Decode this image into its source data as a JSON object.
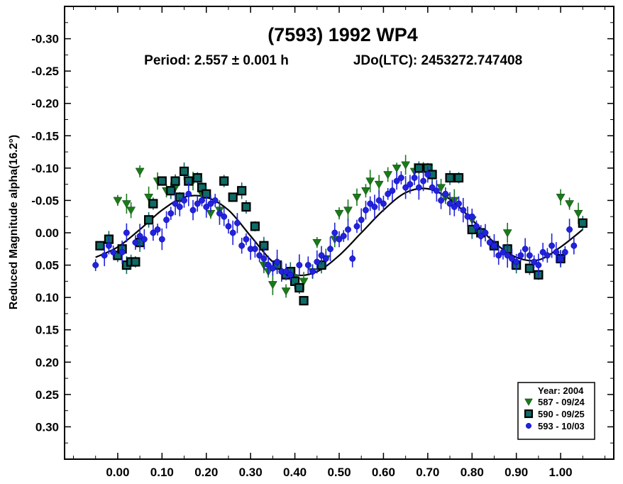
{
  "chart_data": {
    "type": "scatter",
    "title": "(7593) 1992 WP4",
    "subtitle_period": "Period: 2.557 ± 0.001 h",
    "subtitle_epoch": "JDo(LTC): 2453272.747408",
    "xlabel": "",
    "ylabel": "Reduced Magnitude alpha(16.2°)",
    "xlim": [
      -0.12,
      1.12
    ],
    "ylim": [
      -0.35,
      0.35
    ],
    "y_inverted": true,
    "x_ticks": [
      0.0,
      0.1,
      0.2,
      0.3,
      0.4,
      0.5,
      0.6,
      0.7,
      0.8,
      0.9,
      1.0
    ],
    "x_tick_labels": [
      "0.00",
      "0.10",
      "0.20",
      "0.30",
      "0.40",
      "0.50",
      "0.60",
      "0.70",
      "0.80",
      "0.90",
      "1.00"
    ],
    "y_ticks": [
      -0.3,
      -0.25,
      -0.2,
      -0.15,
      -0.1,
      -0.05,
      0.0,
      0.05,
      0.1,
      0.15,
      0.2,
      0.25,
      0.3
    ],
    "y_tick_labels": [
      "-0.30",
      "-0.25",
      "-0.20",
      "-0.15",
      "-0.10",
      "-0.05",
      "0.00",
      "0.05",
      "0.10",
      "0.15",
      "0.20",
      "0.25",
      "0.30"
    ],
    "legend": {
      "title": "Year: 2004",
      "position": "bottom-right",
      "entries": [
        {
          "label": "587 - 09/24",
          "marker": "triangle-down",
          "color": "#1a7a1a"
        },
        {
          "label": "590 - 09/25",
          "marker": "square",
          "color": "#0e6b66"
        },
        {
          "label": "593 - 10/03",
          "marker": "circle",
          "color": "#2222dd"
        }
      ]
    },
    "fit_curve": {
      "color": "#000000",
      "points": [
        [
          -0.05,
          0.038
        ],
        [
          0.0,
          0.022
        ],
        [
          0.05,
          -0.005
        ],
        [
          0.1,
          -0.035
        ],
        [
          0.15,
          -0.055
        ],
        [
          0.2,
          -0.055
        ],
        [
          0.25,
          -0.035
        ],
        [
          0.3,
          0.005
        ],
        [
          0.35,
          0.045
        ],
        [
          0.4,
          0.065
        ],
        [
          0.45,
          0.06
        ],
        [
          0.5,
          0.035
        ],
        [
          0.55,
          0.0
        ],
        [
          0.6,
          -0.035
        ],
        [
          0.65,
          -0.062
        ],
        [
          0.7,
          -0.068
        ],
        [
          0.75,
          -0.052
        ],
        [
          0.8,
          -0.02
        ],
        [
          0.85,
          0.015
        ],
        [
          0.9,
          0.038
        ],
        [
          0.95,
          0.042
        ],
        [
          1.0,
          0.022
        ],
        [
          1.05,
          -0.005
        ]
      ]
    },
    "series": [
      {
        "name": "587 - 09/24",
        "marker": "triangle-down",
        "color": "#1a7a1a",
        "points": [
          [
            0.0,
            -0.05
          ],
          [
            0.02,
            -0.045
          ],
          [
            0.03,
            -0.035
          ],
          [
            0.05,
            -0.095
          ],
          [
            0.07,
            -0.055
          ],
          [
            0.09,
            -0.08
          ],
          [
            0.11,
            -0.065
          ],
          [
            0.13,
            -0.07
          ],
          [
            0.17,
            -0.08
          ],
          [
            0.19,
            -0.06
          ],
          [
            0.21,
            -0.03
          ],
          [
            0.23,
            -0.035
          ],
          [
            0.33,
            0.05
          ],
          [
            0.34,
            0.06
          ],
          [
            0.35,
            0.08
          ],
          [
            0.36,
            0.05
          ],
          [
            0.38,
            0.09
          ],
          [
            0.4,
            0.07
          ],
          [
            0.42,
            0.075
          ],
          [
            0.44,
            0.06
          ],
          [
            0.45,
            0.015
          ],
          [
            0.47,
            0.04
          ],
          [
            0.49,
            0.01
          ],
          [
            0.5,
            -0.03
          ],
          [
            0.52,
            -0.035
          ],
          [
            0.54,
            -0.055
          ],
          [
            0.56,
            -0.065
          ],
          [
            0.57,
            -0.08
          ],
          [
            0.59,
            -0.075
          ],
          [
            0.61,
            -0.09
          ],
          [
            0.63,
            -0.1
          ],
          [
            0.65,
            -0.105
          ],
          [
            0.67,
            -0.095
          ],
          [
            0.69,
            -0.1
          ],
          [
            0.71,
            -0.09
          ],
          [
            0.73,
            -0.07
          ],
          [
            0.74,
            -0.055
          ],
          [
            0.76,
            -0.05
          ],
          [
            0.8,
            -0.02
          ],
          [
            0.82,
            0.005
          ],
          [
            0.85,
            0.02
          ],
          [
            0.88,
            -0.0
          ],
          [
            1.0,
            -0.055
          ],
          [
            1.02,
            -0.045
          ],
          [
            1.04,
            -0.03
          ]
        ]
      },
      {
        "name": "590 - 09/25",
        "marker": "square",
        "color": "#0e6b66",
        "points": [
          [
            -0.04,
            0.02
          ],
          [
            -0.02,
            0.01
          ],
          [
            0.0,
            0.035
          ],
          [
            0.01,
            0.025
          ],
          [
            0.02,
            0.05
          ],
          [
            0.03,
            0.045
          ],
          [
            0.04,
            0.045
          ],
          [
            0.05,
            0.015
          ],
          [
            0.07,
            -0.02
          ],
          [
            0.08,
            -0.045
          ],
          [
            0.1,
            -0.08
          ],
          [
            0.12,
            -0.065
          ],
          [
            0.13,
            -0.08
          ],
          [
            0.14,
            -0.055
          ],
          [
            0.15,
            -0.095
          ],
          [
            0.16,
            -0.08
          ],
          [
            0.18,
            -0.085
          ],
          [
            0.19,
            -0.07
          ],
          [
            0.2,
            -0.06
          ],
          [
            0.24,
            -0.08
          ],
          [
            0.26,
            -0.055
          ],
          [
            0.28,
            -0.065
          ],
          [
            0.29,
            -0.04
          ],
          [
            0.31,
            -0.01
          ],
          [
            0.33,
            0.02
          ],
          [
            0.36,
            0.05
          ],
          [
            0.38,
            0.065
          ],
          [
            0.39,
            0.06
          ],
          [
            0.4,
            0.075
          ],
          [
            0.41,
            0.085
          ],
          [
            0.42,
            0.105
          ],
          [
            0.46,
            0.05
          ],
          [
            0.68,
            -0.1
          ],
          [
            0.7,
            -0.1
          ],
          [
            0.71,
            -0.09
          ],
          [
            0.75,
            -0.085
          ],
          [
            0.77,
            -0.085
          ],
          [
            0.8,
            -0.005
          ],
          [
            0.82,
            0.0
          ],
          [
            0.85,
            0.02
          ],
          [
            0.88,
            0.025
          ],
          [
            0.9,
            0.05
          ],
          [
            0.93,
            0.055
          ],
          [
            0.95,
            0.065
          ],
          [
            1.0,
            0.04
          ],
          [
            1.05,
            -0.015
          ]
        ]
      },
      {
        "name": "593 - 10/03",
        "marker": "circle",
        "color": "#2222dd",
        "points": [
          [
            -0.05,
            0.05
          ],
          [
            -0.03,
            0.035
          ],
          [
            -0.02,
            0.02
          ],
          [
            -0.01,
            0.03
          ],
          [
            0.01,
            0.03
          ],
          [
            0.02,
            0.0
          ],
          [
            0.04,
            0.015
          ],
          [
            0.05,
            0.005
          ],
          [
            0.06,
            0.01
          ],
          [
            0.08,
            0.0
          ],
          [
            0.09,
            -0.005
          ],
          [
            0.1,
            0.01
          ],
          [
            0.11,
            -0.02
          ],
          [
            0.12,
            -0.03
          ],
          [
            0.13,
            -0.045
          ],
          [
            0.14,
            -0.04
          ],
          [
            0.15,
            -0.05
          ],
          [
            0.16,
            -0.06
          ],
          [
            0.17,
            -0.035
          ],
          [
            0.18,
            -0.045
          ],
          [
            0.19,
            -0.05
          ],
          [
            0.2,
            -0.04
          ],
          [
            0.21,
            -0.045
          ],
          [
            0.22,
            -0.05
          ],
          [
            0.23,
            -0.03
          ],
          [
            0.24,
            -0.025
          ],
          [
            0.25,
            -0.01
          ],
          [
            0.26,
            0.0
          ],
          [
            0.27,
            -0.015
          ],
          [
            0.28,
            0.02
          ],
          [
            0.29,
            0.01
          ],
          [
            0.3,
            0.025
          ],
          [
            0.31,
            0.025
          ],
          [
            0.32,
            0.035
          ],
          [
            0.33,
            0.04
          ],
          [
            0.34,
            0.05
          ],
          [
            0.35,
            0.055
          ],
          [
            0.36,
            0.045
          ],
          [
            0.37,
            0.06
          ],
          [
            0.38,
            0.06
          ],
          [
            0.39,
            0.065
          ],
          [
            0.41,
            0.05
          ],
          [
            0.43,
            0.05
          ],
          [
            0.44,
            0.06
          ],
          [
            0.45,
            0.045
          ],
          [
            0.46,
            0.035
          ],
          [
            0.47,
            0.04
          ],
          [
            0.48,
            0.025
          ],
          [
            0.49,
            0.0
          ],
          [
            0.5,
            0.01
          ],
          [
            0.51,
            0.005
          ],
          [
            0.52,
            -0.005
          ],
          [
            0.53,
            0.04
          ],
          [
            0.54,
            -0.01
          ],
          [
            0.55,
            -0.02
          ],
          [
            0.56,
            -0.035
          ],
          [
            0.57,
            -0.045
          ],
          [
            0.58,
            -0.04
          ],
          [
            0.59,
            -0.05
          ],
          [
            0.6,
            -0.045
          ],
          [
            0.61,
            -0.06
          ],
          [
            0.62,
            -0.065
          ],
          [
            0.63,
            -0.08
          ],
          [
            0.64,
            -0.085
          ],
          [
            0.65,
            -0.07
          ],
          [
            0.66,
            -0.075
          ],
          [
            0.67,
            -0.085
          ],
          [
            0.68,
            -0.07
          ],
          [
            0.69,
            -0.08
          ],
          [
            0.7,
            -0.09
          ],
          [
            0.71,
            -0.07
          ],
          [
            0.72,
            -0.065
          ],
          [
            0.73,
            -0.05
          ],
          [
            0.74,
            -0.06
          ],
          [
            0.75,
            -0.045
          ],
          [
            0.76,
            -0.04
          ],
          [
            0.77,
            -0.045
          ],
          [
            0.78,
            -0.035
          ],
          [
            0.79,
            -0.025
          ],
          [
            0.8,
            -0.025
          ],
          [
            0.81,
            -0.01
          ],
          [
            0.82,
            0.005
          ],
          [
            0.83,
            0.0
          ],
          [
            0.84,
            0.015
          ],
          [
            0.85,
            0.02
          ],
          [
            0.86,
            0.035
          ],
          [
            0.87,
            0.03
          ],
          [
            0.88,
            0.035
          ],
          [
            0.89,
            0.04
          ],
          [
            0.9,
            0.045
          ],
          [
            0.91,
            0.035
          ],
          [
            0.92,
            0.025
          ],
          [
            0.93,
            0.035
          ],
          [
            0.94,
            0.045
          ],
          [
            0.95,
            0.05
          ],
          [
            0.96,
            0.03
          ],
          [
            0.97,
            0.035
          ],
          [
            0.98,
            0.02
          ],
          [
            0.99,
            0.03
          ],
          [
            1.0,
            0.04
          ],
          [
            1.01,
            0.03
          ],
          [
            1.02,
            -0.005
          ],
          [
            1.03,
            0.02
          ]
        ]
      }
    ]
  }
}
